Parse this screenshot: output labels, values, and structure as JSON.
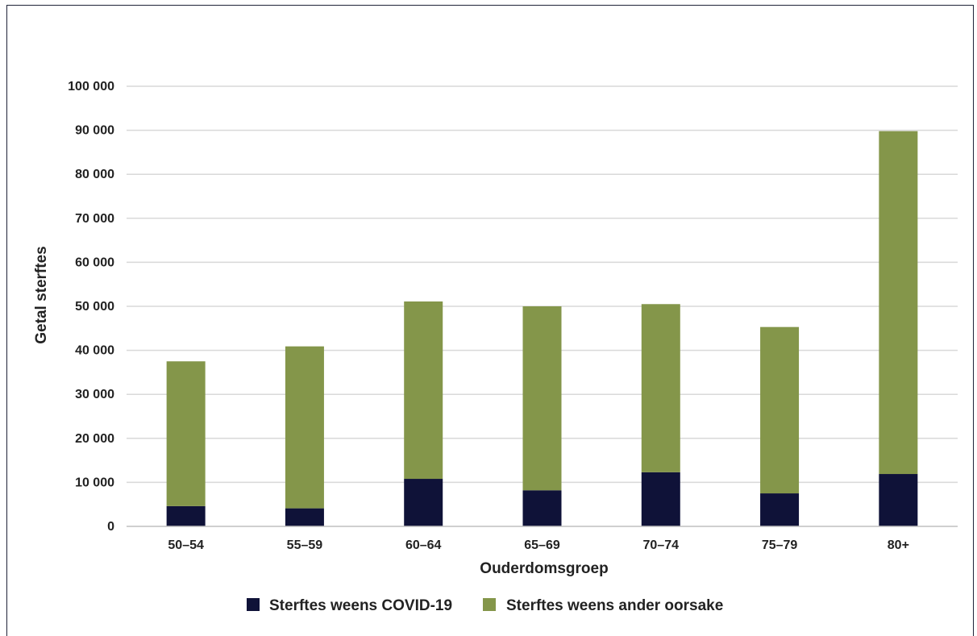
{
  "chart_data": {
    "type": "bar",
    "stacked": true,
    "xlabel": "Ouderdomsgroep",
    "ylabel": "Getal sterftes",
    "categories": [
      "50–54",
      "55–59",
      "60–64",
      "65–69",
      "70–74",
      "75–79",
      "80+"
    ],
    "ylim": [
      0,
      100000
    ],
    "yticks": [
      0,
      10000,
      20000,
      30000,
      40000,
      50000,
      60000,
      70000,
      80000,
      90000,
      100000
    ],
    "ytick_labels": [
      "0",
      "10 000",
      "20 000",
      "30 000",
      "40 000",
      "50 000",
      "60 000",
      "70 000",
      "80 000",
      "90 000",
      "100 000"
    ],
    "grid": true,
    "legend_position": "bottom",
    "series": [
      {
        "name": "Sterftes weens COVID-19",
        "color": "#0f1238",
        "values": [
          4600,
          4100,
          10800,
          8200,
          12300,
          7500,
          11900
        ]
      },
      {
        "name": "Sterftes weens ander oorsake",
        "color": "#84964a",
        "values": [
          32900,
          36800,
          40300,
          41800,
          38200,
          37800,
          77900
        ]
      }
    ]
  }
}
